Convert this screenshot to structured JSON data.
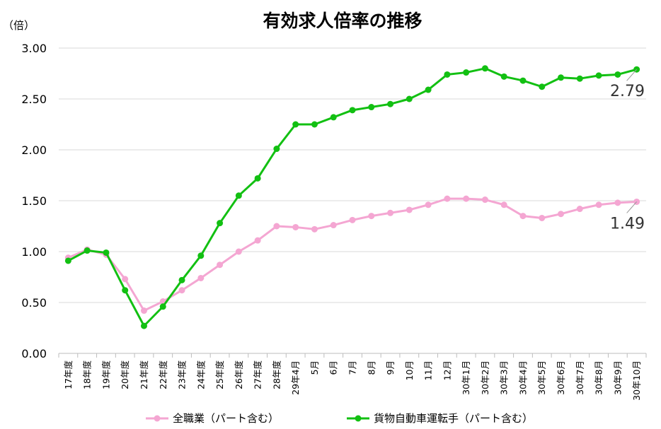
{
  "chart_data": {
    "type": "line",
    "title": "有効求人倍率の推移",
    "ylabel": "（倍）",
    "ylim": [
      0,
      3
    ],
    "yticks": [
      "0.00",
      "0.50",
      "1.00",
      "1.50",
      "2.00",
      "2.50",
      "3.00"
    ],
    "categories": [
      "17年度",
      "18年度",
      "19年度",
      "20年度",
      "21年度",
      "22年度",
      "23年度",
      "24年度",
      "25年度",
      "26年度",
      "27年度",
      "28年度",
      "29年4月",
      "5月",
      "6月",
      "7月",
      "8月",
      "9月",
      "10月",
      "11月",
      "12月",
      "30年1月",
      "30年2月",
      "30年3月",
      "30年4月",
      "30年5月",
      "30年6月",
      "30年7月",
      "30年8月",
      "30年9月",
      "30年10月"
    ],
    "series": [
      {
        "name": "全職業（パート含む）",
        "color": "#f4a6d2",
        "values": [
          0.94,
          1.02,
          0.97,
          0.73,
          0.42,
          0.51,
          0.62,
          0.74,
          0.87,
          1.0,
          1.11,
          1.25,
          1.24,
          1.22,
          1.26,
          1.31,
          1.35,
          1.38,
          1.41,
          1.46,
          1.52,
          1.52,
          1.51,
          1.46,
          1.35,
          1.33,
          1.37,
          1.42,
          1.46,
          1.48,
          1.49
        ],
        "end_label": "1.49"
      },
      {
        "name": "貨物自動車運転手（パート含む）",
        "color": "#12c012",
        "values": [
          0.91,
          1.01,
          0.99,
          0.62,
          0.27,
          0.46,
          0.72,
          0.96,
          1.28,
          1.55,
          1.72,
          2.01,
          2.25,
          2.25,
          2.32,
          2.39,
          2.42,
          2.45,
          2.5,
          2.59,
          2.74,
          2.76,
          2.8,
          2.72,
          2.68,
          2.62,
          2.71,
          2.7,
          2.73,
          2.74,
          2.79
        ],
        "end_label": "2.79"
      }
    ],
    "grid": true,
    "legend": "bottom"
  }
}
